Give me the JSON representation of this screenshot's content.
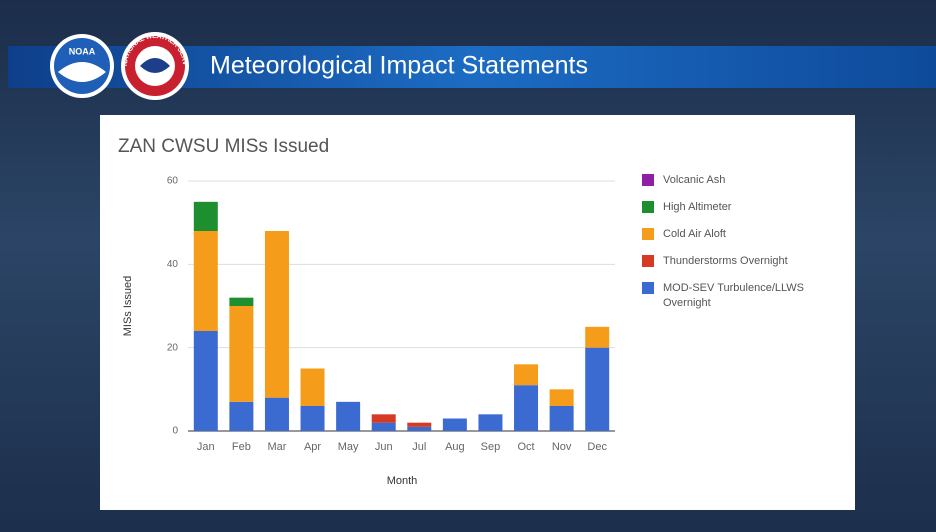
{
  "header": {
    "logos": [
      "NOAA",
      "NATIONAL WEATHER SERVICE"
    ],
    "title": "Meteorological Impact Statements"
  },
  "chart_data": {
    "type": "bar",
    "stacked": true,
    "title": "ZAN CWSU MISs Issued",
    "x_label": "Month",
    "y_label": "MISs Issued",
    "categories": [
      "Jan",
      "Feb",
      "Mar",
      "Apr",
      "May",
      "Jun",
      "Jul",
      "Aug",
      "Sep",
      "Oct",
      "Nov",
      "Dec"
    ],
    "series": [
      {
        "name": "Volcanic Ash",
        "color": "#8e1fa6",
        "values": [
          0,
          0,
          0,
          0,
          0,
          0,
          0,
          0,
          0,
          0,
          0,
          0
        ]
      },
      {
        "name": "High Altimeter",
        "color": "#1d8f2e",
        "values": [
          7,
          2,
          0,
          0,
          0,
          0,
          0,
          0,
          0,
          0,
          0,
          0
        ]
      },
      {
        "name": "Cold Air Aloft",
        "color": "#f59c1a",
        "values": [
          24,
          23,
          40,
          9,
          0,
          0,
          0,
          0,
          0,
          5,
          4,
          5
        ]
      },
      {
        "name": "Thunderstorms Overnight",
        "color": "#d53b22",
        "values": [
          0,
          0,
          0,
          0,
          0,
          2,
          1,
          0,
          0,
          0,
          0,
          0
        ]
      },
      {
        "name": "MOD-SEV Turbulence/LLWS Overnight",
        "color": "#3b6bd0",
        "values": [
          24,
          7,
          8,
          6,
          7,
          2,
          1,
          3,
          4,
          11,
          6,
          20
        ]
      }
    ],
    "ylim": [
      0,
      60
    ],
    "yticks": [
      0,
      20,
      40,
      60
    ],
    "grid": true,
    "legend": "right"
  }
}
